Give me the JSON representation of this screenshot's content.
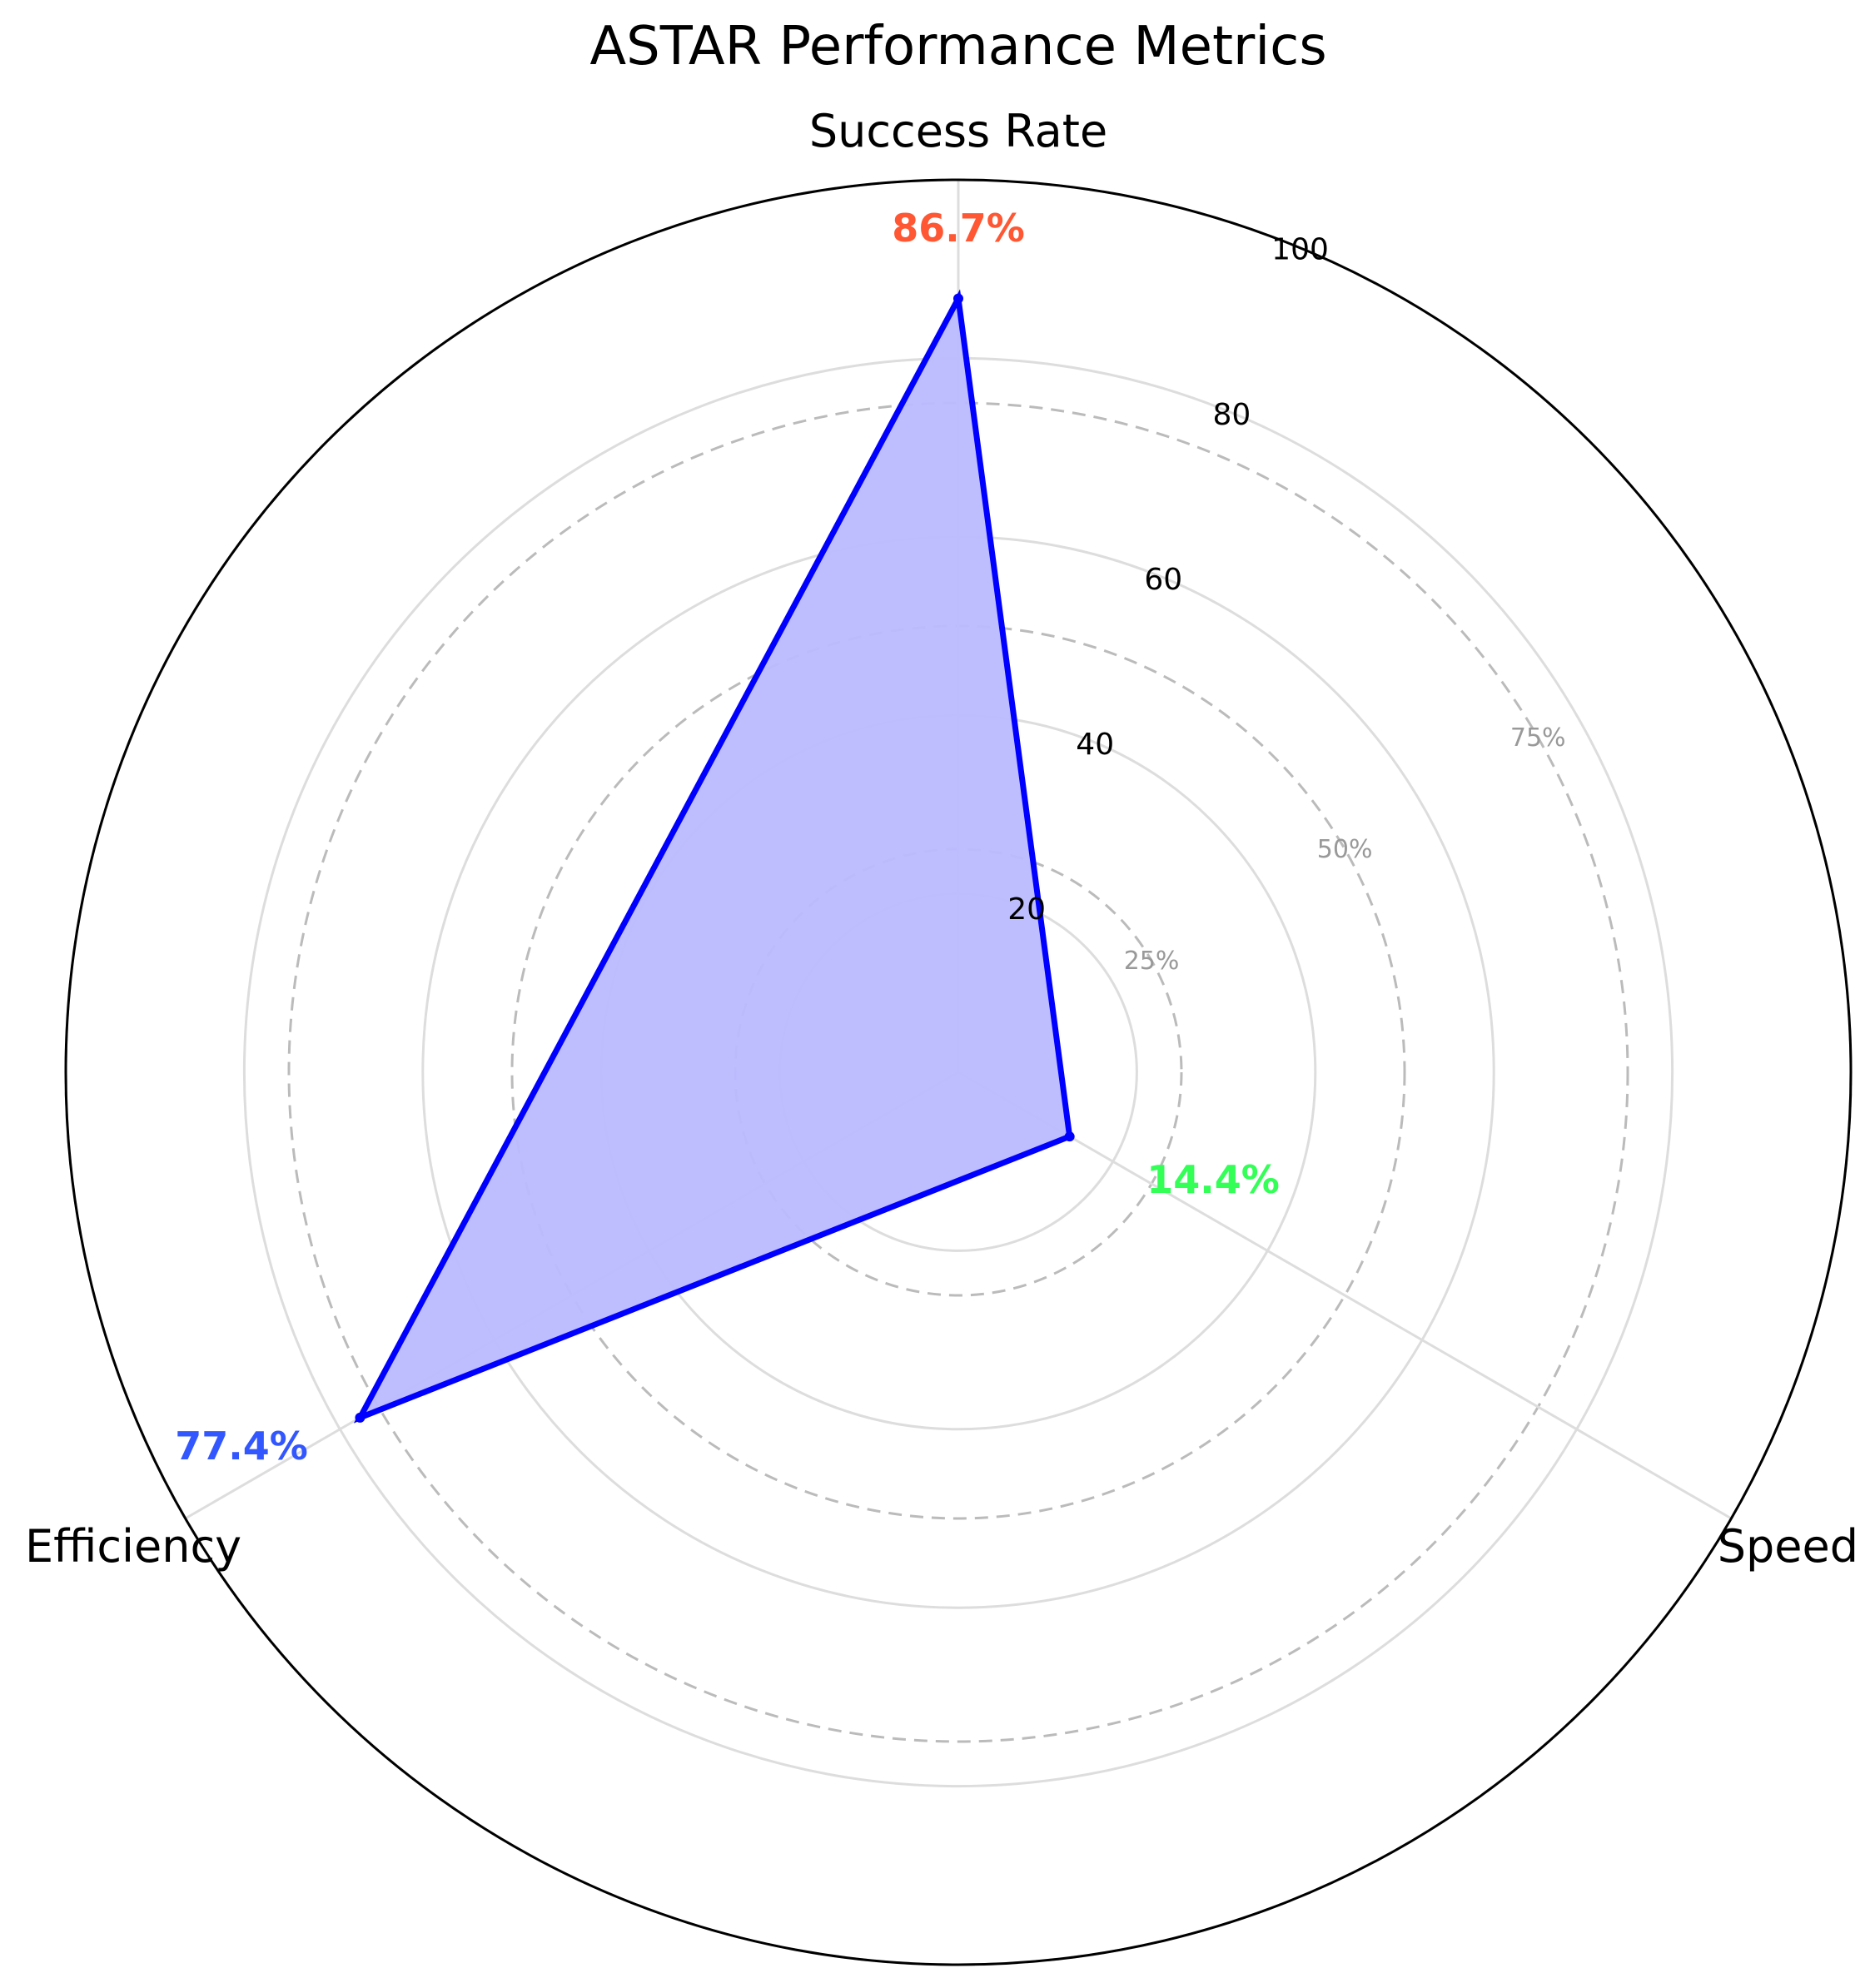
{
  "chart_data": {
    "type": "radar",
    "title": "ASTAR Performance Metrics",
    "categories": [
      "Success Rate",
      "Speed",
      "Efficiency"
    ],
    "series": [
      {
        "values": [
          86.7,
          14.4,
          77.4
        ]
      }
    ],
    "value_labels": [
      "86.7%",
      "14.4%",
      "77.4%"
    ],
    "value_label_colors": [
      "#ff5733",
      "#33ff57",
      "#3357ff"
    ],
    "radial_range": [
      0,
      100
    ],
    "radial_ticks": [
      20,
      40,
      60,
      80,
      100
    ],
    "radial_tick_labels": [
      "20",
      "40",
      "60",
      "80",
      "100"
    ],
    "reference_levels": [
      25,
      50,
      75,
      100
    ],
    "reference_labels": [
      "25%",
      "50%",
      "75%"
    ],
    "grid": true,
    "line_color": "#0000ff",
    "fill_color": "#bbbbff",
    "ref_line_color": "#bbbbbb",
    "grid_color": "#dddddd"
  }
}
